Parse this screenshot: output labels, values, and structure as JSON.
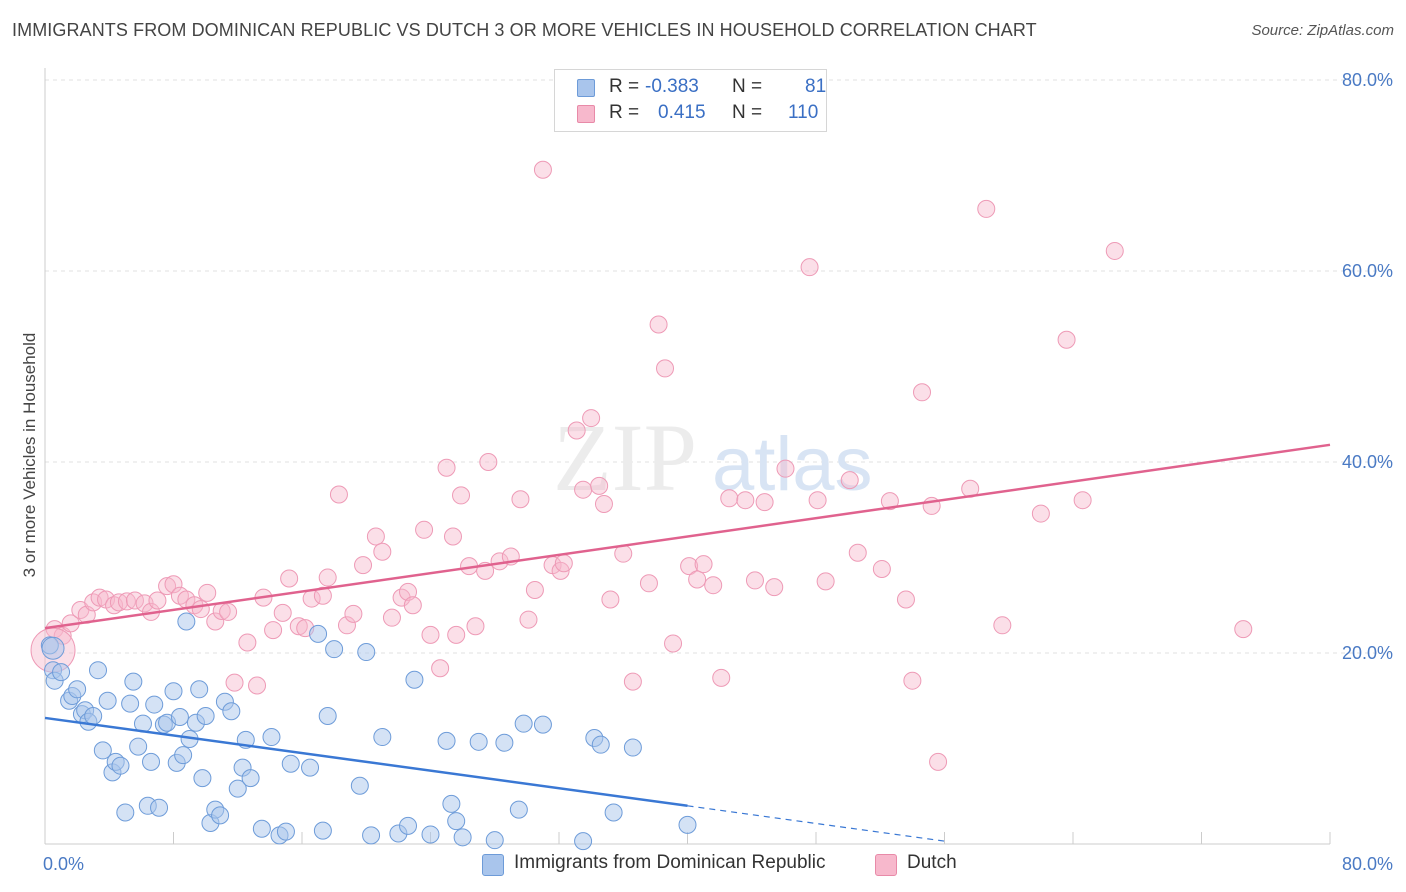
{
  "title": "IMMIGRANTS FROM DOMINICAN REPUBLIC VS DUTCH 3 OR MORE VEHICLES IN HOUSEHOLD CORRELATION CHART",
  "source": "Source: ZipAtlas.com",
  "watermark": {
    "zip": "ZIP",
    "atlas": "atlas"
  },
  "legend": {
    "rows": [
      {
        "r_label": "R =",
        "r_value": "-0.383",
        "n_label": "N =",
        "n_value": "81",
        "color": "#a9c5ec"
      },
      {
        "r_label": "R =",
        "r_value": "0.415",
        "n_label": "N =",
        "n_value": "110",
        "color": "#f7b8cc"
      }
    ]
  },
  "bottom_legend": {
    "series1": "Immigrants from Dominican Republic",
    "series2": "Dutch"
  },
  "chart_data": {
    "type": "scatter",
    "ylabel": "3 or more Vehicles in Household",
    "xlim": [
      0,
      80
    ],
    "ylim": [
      0,
      80
    ],
    "x_tick_labels": [
      "0.0%",
      "80.0%"
    ],
    "y_tick_labels": [
      "20.0%",
      "40.0%",
      "60.0%",
      "80.0%"
    ],
    "y_ticks": [
      20,
      40,
      60,
      80
    ],
    "grid": true,
    "colors": {
      "blue": "#3a78d4",
      "blue_fill": "#a9c5ec",
      "pink": "#e0628e",
      "pink_fill": "#f7b8cc"
    },
    "series": [
      {
        "name": "Immigrants from Dominican Republic",
        "trend": {
          "x": [
            0,
            40
          ],
          "y": [
            13.2,
            4.0
          ],
          "dashed_to": [
            56,
            0.3
          ]
        },
        "points": [
          [
            0.3,
            20.8
          ],
          [
            0.5,
            18.2
          ],
          [
            0.6,
            17.1
          ],
          [
            1.0,
            18.0
          ],
          [
            1.5,
            15.0
          ],
          [
            1.7,
            15.5
          ],
          [
            2.0,
            16.2
          ],
          [
            2.3,
            13.6
          ],
          [
            2.5,
            14.0
          ],
          [
            2.7,
            12.8
          ],
          [
            3.0,
            13.4
          ],
          [
            3.3,
            18.2
          ],
          [
            3.6,
            9.8
          ],
          [
            3.9,
            15.0
          ],
          [
            4.2,
            7.5
          ],
          [
            4.4,
            8.6
          ],
          [
            4.7,
            8.2
          ],
          [
            5.0,
            3.3
          ],
          [
            5.3,
            14.7
          ],
          [
            5.5,
            17.0
          ],
          [
            5.8,
            10.2
          ],
          [
            6.1,
            12.6
          ],
          [
            6.4,
            4.0
          ],
          [
            6.6,
            8.6
          ],
          [
            6.8,
            14.6
          ],
          [
            7.1,
            3.8
          ],
          [
            7.4,
            12.5
          ],
          [
            7.6,
            12.7
          ],
          [
            8.0,
            16.0
          ],
          [
            8.2,
            8.5
          ],
          [
            8.4,
            13.3
          ],
          [
            8.6,
            9.3
          ],
          [
            8.8,
            23.3
          ],
          [
            9.0,
            11.0
          ],
          [
            9.4,
            12.7
          ],
          [
            9.6,
            16.2
          ],
          [
            9.8,
            6.9
          ],
          [
            10.0,
            13.4
          ],
          [
            10.3,
            2.2
          ],
          [
            10.6,
            3.6
          ],
          [
            10.9,
            3.0
          ],
          [
            11.2,
            14.9
          ],
          [
            11.6,
            13.9
          ],
          [
            12.0,
            5.8
          ],
          [
            12.3,
            8.0
          ],
          [
            12.5,
            10.9
          ],
          [
            12.8,
            6.9
          ],
          [
            13.5,
            1.6
          ],
          [
            14.1,
            11.2
          ],
          [
            14.6,
            0.9
          ],
          [
            15.0,
            1.3
          ],
          [
            15.3,
            8.4
          ],
          [
            16.5,
            8.0
          ],
          [
            17.0,
            22.0
          ],
          [
            17.3,
            1.4
          ],
          [
            17.6,
            13.4
          ],
          [
            18.0,
            20.4
          ],
          [
            19.6,
            6.1
          ],
          [
            20.0,
            20.1
          ],
          [
            20.3,
            0.9
          ],
          [
            21.0,
            11.2
          ],
          [
            22.0,
            1.1
          ],
          [
            22.6,
            1.9
          ],
          [
            23.0,
            17.2
          ],
          [
            25.0,
            10.8
          ],
          [
            25.3,
            4.2
          ],
          [
            25.6,
            2.4
          ],
          [
            26.0,
            0.7
          ],
          [
            27.0,
            10.7
          ],
          [
            28.6,
            10.6
          ],
          [
            28.0,
            0.4
          ],
          [
            29.5,
            3.6
          ],
          [
            29.8,
            12.6
          ],
          [
            31.0,
            12.5
          ],
          [
            33.5,
            0.3
          ],
          [
            34.2,
            11.1
          ],
          [
            34.6,
            10.4
          ],
          [
            35.4,
            3.3
          ],
          [
            36.6,
            10.1
          ],
          [
            40.0,
            2.0
          ],
          [
            24.0,
            1.0
          ]
        ],
        "large_point": [
          0.5,
          20.5
        ]
      },
      {
        "name": "Dutch",
        "trend": {
          "x": [
            0,
            80
          ],
          "y": [
            22.6,
            41.8
          ]
        },
        "points": [
          [
            0.6,
            22.5
          ],
          [
            1.1,
            21.8
          ],
          [
            1.6,
            23.1
          ],
          [
            2.2,
            24.5
          ],
          [
            2.6,
            24.0
          ],
          [
            3.0,
            25.3
          ],
          [
            3.4,
            25.8
          ],
          [
            3.8,
            25.6
          ],
          [
            4.3,
            25.0
          ],
          [
            4.6,
            25.3
          ],
          [
            5.1,
            25.4
          ],
          [
            5.6,
            25.5
          ],
          [
            6.2,
            25.2
          ],
          [
            6.6,
            24.3
          ],
          [
            7.0,
            25.5
          ],
          [
            7.6,
            27.0
          ],
          [
            8.0,
            27.2
          ],
          [
            8.4,
            26.0
          ],
          [
            8.8,
            25.6
          ],
          [
            9.3,
            25.0
          ],
          [
            9.7,
            24.6
          ],
          [
            10.1,
            26.3
          ],
          [
            10.6,
            23.3
          ],
          [
            11.0,
            24.4
          ],
          [
            11.4,
            24.3
          ],
          [
            11.8,
            16.9
          ],
          [
            12.6,
            21.1
          ],
          [
            13.2,
            16.6
          ],
          [
            13.6,
            25.8
          ],
          [
            14.2,
            22.4
          ],
          [
            14.8,
            24.2
          ],
          [
            15.2,
            27.8
          ],
          [
            15.8,
            22.8
          ],
          [
            16.2,
            22.6
          ],
          [
            16.6,
            25.7
          ],
          [
            17.3,
            26.0
          ],
          [
            17.6,
            27.9
          ],
          [
            18.3,
            36.6
          ],
          [
            18.8,
            22.9
          ],
          [
            19.2,
            24.1
          ],
          [
            19.8,
            29.2
          ],
          [
            20.6,
            32.2
          ],
          [
            21.0,
            30.6
          ],
          [
            21.6,
            23.7
          ],
          [
            22.2,
            25.8
          ],
          [
            22.6,
            26.4
          ],
          [
            22.9,
            25.0
          ],
          [
            23.6,
            32.9
          ],
          [
            24.0,
            21.9
          ],
          [
            24.6,
            18.4
          ],
          [
            25.0,
            39.4
          ],
          [
            25.6,
            21.9
          ],
          [
            25.9,
            36.5
          ],
          [
            26.4,
            29.1
          ],
          [
            26.8,
            22.8
          ],
          [
            27.4,
            28.6
          ],
          [
            27.6,
            40.0
          ],
          [
            28.3,
            29.6
          ],
          [
            29.0,
            30.1
          ],
          [
            29.6,
            36.1
          ],
          [
            30.1,
            23.5
          ],
          [
            30.5,
            26.6
          ],
          [
            31.0,
            70.6
          ],
          [
            31.6,
            29.2
          ],
          [
            32.1,
            28.6
          ],
          [
            32.3,
            29.4
          ],
          [
            33.1,
            43.3
          ],
          [
            33.5,
            37.1
          ],
          [
            34.0,
            44.6
          ],
          [
            34.5,
            37.5
          ],
          [
            34.8,
            35.6
          ],
          [
            35.2,
            25.6
          ],
          [
            36.0,
            30.4
          ],
          [
            36.6,
            17.0
          ],
          [
            37.6,
            27.3
          ],
          [
            38.2,
            54.4
          ],
          [
            38.6,
            49.8
          ],
          [
            39.1,
            21.0
          ],
          [
            40.1,
            29.1
          ],
          [
            40.6,
            27.7
          ],
          [
            41.0,
            29.3
          ],
          [
            41.6,
            27.1
          ],
          [
            42.1,
            17.4
          ],
          [
            42.6,
            36.2
          ],
          [
            43.6,
            36.0
          ],
          [
            44.2,
            27.6
          ],
          [
            44.8,
            35.8
          ],
          [
            45.4,
            26.9
          ],
          [
            46.1,
            39.3
          ],
          [
            47.6,
            60.4
          ],
          [
            48.1,
            36.0
          ],
          [
            48.6,
            27.5
          ],
          [
            50.1,
            38.1
          ],
          [
            50.6,
            30.5
          ],
          [
            52.1,
            28.8
          ],
          [
            52.6,
            35.9
          ],
          [
            53.6,
            25.6
          ],
          [
            54.0,
            17.1
          ],
          [
            54.6,
            47.3
          ],
          [
            55.2,
            35.4
          ],
          [
            55.6,
            8.6
          ],
          [
            57.6,
            37.2
          ],
          [
            58.6,
            66.5
          ],
          [
            59.6,
            22.9
          ],
          [
            62.0,
            34.6
          ],
          [
            63.6,
            52.8
          ],
          [
            64.6,
            36.0
          ],
          [
            66.6,
            62.1
          ],
          [
            74.6,
            22.5
          ],
          [
            25.4,
            32.2
          ]
        ],
        "large_point": [
          0.5,
          20.3
        ]
      }
    ]
  }
}
